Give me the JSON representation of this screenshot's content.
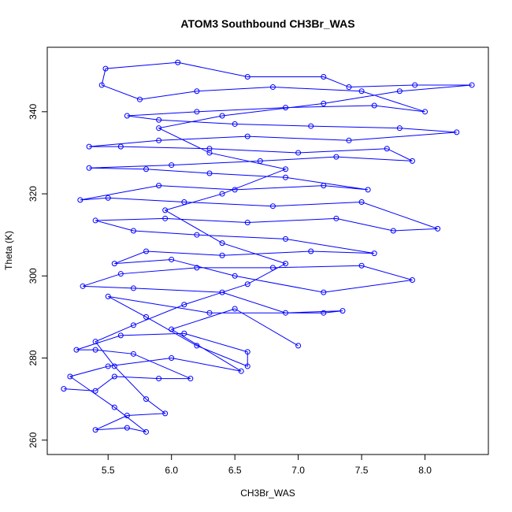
{
  "chart_data": {
    "type": "line",
    "markers": true,
    "title": "ATOM3 Southbound CH3Br_WAS",
    "x_label": "CH3Br_WAS",
    "y_label": "Theta (K)",
    "color": "#0000ff",
    "x": [
      5.15,
      5.4,
      5.55,
      5.9,
      6.15,
      5.7,
      5.4,
      5.25,
      5.6,
      6.1,
      6.6,
      6.6,
      6.2,
      5.8,
      5.5,
      6.3,
      7.2,
      7.35,
      6.9,
      6.4,
      5.7,
      5.3,
      5.6,
      6.2,
      6.8,
      7.5,
      7.9,
      7.2,
      6.5,
      6.0,
      5.55,
      5.8,
      6.4,
      7.1,
      7.6,
      6.9,
      6.2,
      5.7,
      5.4,
      5.95,
      6.6,
      7.3,
      7.75,
      8.1,
      7.5,
      6.8,
      6.1,
      5.5,
      5.28,
      5.9,
      6.5,
      7.2,
      7.55,
      6.9,
      6.3,
      5.8,
      5.35,
      6.0,
      6.7,
      7.3,
      7.9,
      7.7,
      7.0,
      6.3,
      5.6,
      5.35,
      5.9,
      6.6,
      7.4,
      8.25,
      7.8,
      7.1,
      6.5,
      5.9,
      5.65,
      6.2,
      6.9,
      7.6,
      8.0,
      7.5,
      6.8,
      6.2,
      5.75,
      5.45,
      5.48,
      6.05,
      6.6,
      7.2,
      7.4,
      7.92,
      8.37,
      7.8,
      7.2,
      6.4,
      5.9,
      6.3,
      6.9,
      6.4,
      5.95,
      6.4,
      6.9,
      6.6,
      6.1,
      5.7,
      5.4,
      5.55,
      5.8,
      5.95,
      5.65,
      5.4,
      5.65,
      5.8,
      5.55,
      5.2,
      5.5,
      6.0,
      6.55,
      6.0,
      6.5,
      7.0
    ],
    "values": [
      272.5,
      272,
      275.5,
      275,
      275,
      281,
      282,
      282,
      285.5,
      286,
      281.5,
      278,
      283,
      290,
      295,
      291,
      291,
      291.5,
      291,
      296,
      297,
      297.5,
      300.5,
      302,
      302,
      302.5,
      299,
      296,
      300,
      304,
      303,
      306,
      305,
      306,
      305.5,
      309,
      310,
      311,
      313.5,
      314,
      313,
      314,
      311,
      311.5,
      318,
      317,
      318,
      319,
      318.5,
      322,
      321,
      322,
      321,
      324,
      325,
      326,
      326.3,
      327,
      328,
      329,
      328,
      331,
      330,
      331,
      331.5,
      331.5,
      333,
      334,
      333,
      335,
      336,
      336.5,
      337,
      338,
      339,
      340,
      341,
      341.5,
      340,
      345,
      346,
      345,
      343,
      346.5,
      350.5,
      352,
      348.5,
      348.5,
      346,
      346.5,
      346.5,
      345,
      342,
      339,
      336,
      330,
      326,
      320,
      316,
      308,
      303,
      298,
      293,
      288,
      284,
      278,
      270,
      266.5,
      266,
      262.5,
      263,
      262,
      268,
      275.5,
      278,
      280,
      276.8,
      287,
      292,
      283
    ],
    "xlim": [
      5.02,
      8.5
    ],
    "ylim": [
      256.5,
      355.7
    ],
    "xticks": [
      5.5,
      {
        "value": 6,
        "label": "6.0"
      },
      6.5,
      {
        "value": 7,
        "label": "7.0"
      },
      7.5,
      {
        "value": 8,
        "label": "8.0"
      }
    ],
    "yticks": [
      260,
      280,
      300,
      320,
      340
    ]
  }
}
